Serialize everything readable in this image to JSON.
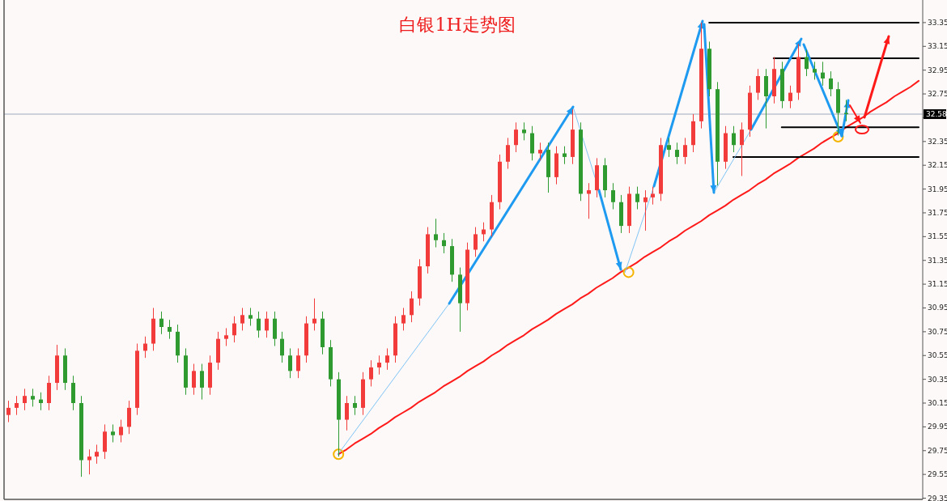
{
  "chart_data": {
    "type": "candlestick",
    "title": "白银1H走势图",
    "categories": [
      null,
      null,
      null,
      null,
      null,
      null,
      null,
      null,
      null,
      null,
      null,
      null,
      null,
      null,
      null,
      null,
      null,
      null,
      null,
      null,
      null,
      null,
      null,
      null,
      null,
      null,
      null,
      null,
      null,
      null,
      null,
      null,
      null,
      null,
      null,
      null,
      null,
      null,
      null,
      null,
      null,
      null,
      null,
      null,
      null,
      null,
      null,
      null,
      null,
      null,
      null,
      null,
      null,
      null,
      null,
      null,
      null,
      null,
      null,
      null,
      null,
      null,
      null,
      null,
      null,
      null,
      null,
      null,
      null,
      null,
      null,
      null,
      null,
      null,
      null,
      null,
      null,
      null,
      null,
      null,
      null,
      null,
      null,
      null,
      null,
      null,
      null,
      null,
      null,
      null,
      null,
      null,
      null,
      null,
      null,
      null,
      null,
      null,
      null,
      null,
      null,
      null,
      null,
      null,
      null,
      null,
      null,
      null,
      null,
      null,
      null,
      null,
      null,
      null
    ],
    "ohlc": [
      [
        30.05,
        30.17,
        29.99,
        30.11
      ],
      [
        30.11,
        30.21,
        30.05,
        30.15
      ],
      [
        30.15,
        30.27,
        30.09,
        30.21
      ],
      [
        30.21,
        30.27,
        30.12,
        30.18
      ],
      [
        30.18,
        30.24,
        30.09,
        30.15
      ],
      [
        30.15,
        30.38,
        30.09,
        30.32
      ],
      [
        30.32,
        30.64,
        30.26,
        30.55
      ],
      [
        30.55,
        30.61,
        30.26,
        30.32
      ],
      [
        30.32,
        30.38,
        30.09,
        30.15
      ],
      [
        30.15,
        30.21,
        29.53,
        29.67
      ],
      [
        29.67,
        29.76,
        29.55,
        29.7
      ],
      [
        29.7,
        29.8,
        29.64,
        29.74
      ],
      [
        29.74,
        29.97,
        29.68,
        29.91
      ],
      [
        29.91,
        29.97,
        29.82,
        29.88
      ],
      [
        29.88,
        30.01,
        29.82,
        29.95
      ],
      [
        29.95,
        30.17,
        29.89,
        30.11
      ],
      [
        30.11,
        30.65,
        30.05,
        30.59
      ],
      [
        30.59,
        30.71,
        30.53,
        30.65
      ],
      [
        30.65,
        30.95,
        30.59,
        30.86
      ],
      [
        30.86,
        30.92,
        30.73,
        30.79
      ],
      [
        30.79,
        30.85,
        30.69,
        30.75
      ],
      [
        30.75,
        30.81,
        30.49,
        30.55
      ],
      [
        30.55,
        30.61,
        30.22,
        30.28
      ],
      [
        30.28,
        30.48,
        30.22,
        30.42
      ],
      [
        30.42,
        30.48,
        30.18,
        30.28
      ],
      [
        30.28,
        30.55,
        30.22,
        30.49
      ],
      [
        30.49,
        30.75,
        30.43,
        30.69
      ],
      [
        30.69,
        30.78,
        30.63,
        30.72
      ],
      [
        30.72,
        30.88,
        30.66,
        30.82
      ],
      [
        30.82,
        30.95,
        30.76,
        30.89
      ],
      [
        30.89,
        30.95,
        30.8,
        30.86
      ],
      [
        30.86,
        30.92,
        30.7,
        30.76
      ],
      [
        30.76,
        30.92,
        30.7,
        30.86
      ],
      [
        30.86,
        30.92,
        30.63,
        30.69
      ],
      [
        30.69,
        30.75,
        30.49,
        30.55
      ],
      [
        30.55,
        30.61,
        30.36,
        30.42
      ],
      [
        30.42,
        30.61,
        30.36,
        30.55
      ],
      [
        30.55,
        30.88,
        30.49,
        30.82
      ],
      [
        30.82,
        31.03,
        30.76,
        30.86
      ],
      [
        30.86,
        30.92,
        30.56,
        30.62
      ],
      [
        30.62,
        30.68,
        30.29,
        30.35
      ],
      [
        30.35,
        30.41,
        29.7,
        30.01
      ],
      [
        30.01,
        30.21,
        29.92,
        30.15
      ],
      [
        30.15,
        30.21,
        30.05,
        30.11
      ],
      [
        30.11,
        30.41,
        30.05,
        30.35
      ],
      [
        30.35,
        30.51,
        30.29,
        30.45
      ],
      [
        30.45,
        30.55,
        30.39,
        30.49
      ],
      [
        30.49,
        30.61,
        30.43,
        30.55
      ],
      [
        30.55,
        30.88,
        30.49,
        30.82
      ],
      [
        30.82,
        30.95,
        30.76,
        30.89
      ],
      [
        30.89,
        31.09,
        30.83,
        31.03
      ],
      [
        31.03,
        31.36,
        30.97,
        31.3
      ],
      [
        31.3,
        31.63,
        31.24,
        31.57
      ],
      [
        31.57,
        31.7,
        31.46,
        31.52
      ],
      [
        31.52,
        31.58,
        31.41,
        31.47
      ],
      [
        31.47,
        31.53,
        31.17,
        31.23
      ],
      [
        31.23,
        31.29,
        30.75,
        30.99
      ],
      [
        30.99,
        31.5,
        30.93,
        31.44
      ],
      [
        31.44,
        31.63,
        31.38,
        31.57
      ],
      [
        31.57,
        31.67,
        31.51,
        31.61
      ],
      [
        31.61,
        31.9,
        31.55,
        31.84
      ],
      [
        31.84,
        32.24,
        31.78,
        32.18
      ],
      [
        32.18,
        32.38,
        32.12,
        32.32
      ],
      [
        32.32,
        32.51,
        32.26,
        32.45
      ],
      [
        32.45,
        32.51,
        32.36,
        32.42
      ],
      [
        32.42,
        32.48,
        32.19,
        32.25
      ],
      [
        32.25,
        32.34,
        32.19,
        32.28
      ],
      [
        32.28,
        32.34,
        31.92,
        32.05
      ],
      [
        32.05,
        32.31,
        31.99,
        32.25
      ],
      [
        32.25,
        32.31,
        32.16,
        32.22
      ],
      [
        32.22,
        32.62,
        32.16,
        32.45
      ],
      [
        32.45,
        32.51,
        31.85,
        31.91
      ],
      [
        31.91,
        32.0,
        31.7,
        31.94
      ],
      [
        31.94,
        32.21,
        31.88,
        32.15
      ],
      [
        32.15,
        32.21,
        31.88,
        31.94
      ],
      [
        31.94,
        32.0,
        31.78,
        31.84
      ],
      [
        31.84,
        31.9,
        31.58,
        31.64
      ],
      [
        31.64,
        31.97,
        31.58,
        31.91
      ],
      [
        31.91,
        31.97,
        31.78,
        31.84
      ],
      [
        31.84,
        31.94,
        31.6,
        31.88
      ],
      [
        31.88,
        31.97,
        31.82,
        31.91
      ],
      [
        31.91,
        32.38,
        31.85,
        32.32
      ],
      [
        32.32,
        32.38,
        32.22,
        32.28
      ],
      [
        32.28,
        32.34,
        32.16,
        32.22
      ],
      [
        32.22,
        32.38,
        32.16,
        32.32
      ],
      [
        32.32,
        32.58,
        32.26,
        32.52
      ],
      [
        32.52,
        33.35,
        32.46,
        33.13
      ],
      [
        33.13,
        33.19,
        32.73,
        32.79
      ],
      [
        32.79,
        32.85,
        31.98,
        32.18
      ],
      [
        32.18,
        32.48,
        32.12,
        32.42
      ],
      [
        32.42,
        32.48,
        32.26,
        32.32
      ],
      [
        32.32,
        32.51,
        32.06,
        32.45
      ],
      [
        32.45,
        32.82,
        32.39,
        32.76
      ],
      [
        32.76,
        32.96,
        32.7,
        32.9
      ],
      [
        32.9,
        32.96,
        32.46,
        32.73
      ],
      [
        32.73,
        33.06,
        32.67,
        32.96
      ],
      [
        32.96,
        33.02,
        32.63,
        32.69
      ],
      [
        32.69,
        32.82,
        32.63,
        32.76
      ],
      [
        32.76,
        33.17,
        32.7,
        33.06
      ],
      [
        33.06,
        33.12,
        32.9,
        32.96
      ],
      [
        32.96,
        33.02,
        32.87,
        32.93
      ],
      [
        32.93,
        33.02,
        32.82,
        32.88
      ],
      [
        32.88,
        32.94,
        32.73,
        32.79
      ],
      [
        32.79,
        32.85,
        32.4,
        32.59
      ],
      [
        32.59,
        32.7,
        32.52,
        32.58
      ],
      null,
      null,
      null,
      null,
      null,
      null,
      null,
      null,
      null
    ],
    "colors": [
      "#f23b3b",
      "#f23b3b",
      "#f23b3b",
      "#2f9a2f",
      "#2f9a2f",
      "#f23b3b",
      "#f23b3b",
      "#2f9a2f",
      "#2f9a2f",
      "#2f9a2f",
      "#f23b3b",
      "#f23b3b",
      "#f23b3b",
      "#2f9a2f",
      "#f23b3b",
      "#f23b3b",
      "#f23b3b",
      "#f23b3b",
      "#f23b3b",
      "#2f9a2f",
      "#2f9a2f",
      "#2f9a2f",
      "#2f9a2f",
      "#f23b3b",
      "#2f9a2f",
      "#f23b3b",
      "#f23b3b",
      "#f23b3b",
      "#f23b3b",
      "#f23b3b",
      "#2f9a2f",
      "#2f9a2f",
      "#f23b3b",
      "#2f9a2f",
      "#2f9a2f",
      "#2f9a2f",
      "#f23b3b",
      "#f23b3b",
      "#f23b3b",
      "#2f9a2f",
      "#2f9a2f",
      "#2f9a2f",
      "#f23b3b",
      "#2f9a2f",
      "#f23b3b",
      "#f23b3b",
      "#f23b3b",
      "#f23b3b",
      "#f23b3b",
      "#f23b3b",
      "#f23b3b",
      "#f23b3b",
      "#f23b3b",
      "#2f9a2f",
      "#2f9a2f",
      "#2f9a2f",
      "#2f9a2f",
      "#f23b3b",
      "#f23b3b",
      "#f23b3b",
      "#f23b3b",
      "#f23b3b",
      "#f23b3b",
      "#f23b3b",
      "#2f9a2f",
      "#2f9a2f",
      "#f23b3b",
      "#2f9a2f",
      "#f23b3b",
      "#2f9a2f",
      "#f23b3b",
      "#2f9a2f",
      "#f23b3b",
      "#f23b3b",
      "#2f9a2f",
      "#2f9a2f",
      "#2f9a2f",
      "#f23b3b",
      "#2f9a2f",
      "#f23b3b",
      "#f23b3b",
      "#f23b3b",
      "#2f9a2f",
      "#2f9a2f",
      "#f23b3b",
      "#f23b3b",
      "#f23b3b",
      "#2f9a2f",
      "#2f9a2f",
      "#f23b3b",
      "#2f9a2f",
      "#f23b3b",
      "#f23b3b",
      "#f23b3b",
      "#2f9a2f",
      "#f23b3b",
      "#2f9a2f",
      "#f23b3b",
      "#f23b3b",
      "#2f9a2f",
      "#2f9a2f",
      "#2f9a2f",
      "#2f9a2f",
      "#2f9a2f",
      "#2f9a2f",
      null,
      null,
      null,
      null,
      null,
      null,
      null,
      null,
      null
    ],
    "series": [
      {
        "type": "line",
        "color": "#ff1a1a",
        "values": [
          null,
          null,
          null,
          null,
          null,
          null,
          null,
          null,
          null,
          null,
          null,
          null,
          null,
          null,
          null,
          null,
          null,
          null,
          null,
          null,
          null,
          null,
          null,
          null,
          null,
          null,
          null,
          null,
          null,
          null,
          null,
          null,
          null,
          null,
          null,
          null,
          null,
          null,
          null,
          null,
          null,
          29.72,
          29.76,
          29.81,
          29.85,
          29.89,
          29.94,
          29.98,
          30.03,
          30.07,
          30.11,
          30.16,
          30.2,
          30.24,
          30.29,
          30.33,
          30.37,
          30.42,
          30.46,
          30.5,
          30.55,
          30.59,
          30.64,
          30.68,
          30.72,
          30.77,
          30.81,
          30.85,
          30.9,
          30.94,
          30.98,
          31.03,
          31.07,
          31.12,
          31.16,
          31.2,
          31.25,
          31.29,
          31.33,
          31.38,
          31.42,
          31.46,
          31.51,
          31.55,
          31.6,
          31.64,
          31.68,
          31.73,
          31.77,
          31.81,
          31.86,
          31.9,
          31.94,
          31.99,
          32.03,
          32.08,
          32.12,
          32.16,
          32.21,
          32.25,
          32.29,
          32.34,
          32.38,
          32.42,
          32.47,
          32.51,
          32.55,
          32.6,
          32.64,
          32.68,
          32.73,
          32.77,
          32.81,
          32.86
        ]
      },
      {
        "type": "line",
        "color": "#000000",
        "values": [
          null,
          null,
          null,
          null,
          null,
          null,
          null,
          null,
          null,
          null,
          null,
          null,
          null,
          null,
          null,
          null,
          null,
          null,
          null,
          null,
          null,
          null,
          null,
          null,
          null,
          null,
          null,
          null,
          null,
          null,
          null,
          null,
          null,
          null,
          null,
          null,
          null,
          null,
          null,
          null,
          null,
          null,
          null,
          null,
          null,
          null,
          null,
          null,
          null,
          null,
          null,
          null,
          null,
          null,
          null,
          null,
          null,
          null,
          null,
          null,
          null,
          null,
          null,
          null,
          null,
          null,
          null,
          null,
          null,
          null,
          null,
          null,
          null,
          null,
          null,
          null,
          null,
          null,
          null,
          null,
          null,
          null,
          null,
          null,
          null,
          null,
          null,
          33.35,
          33.35,
          33.35,
          33.35,
          33.35,
          33.35,
          33.35,
          33.35,
          33.35,
          33.35,
          33.35,
          33.35,
          33.35,
          33.35,
          33.35,
          33.35,
          33.35,
          33.35,
          33.35,
          33.35,
          33.35,
          33.35,
          33.35,
          33.35,
          33.35,
          33.35,
          33.35
        ]
      },
      {
        "type": "line",
        "color": "#000000",
        "values": [
          null,
          null,
          null,
          null,
          null,
          null,
          null,
          null,
          null,
          null,
          null,
          null,
          null,
          null,
          null,
          null,
          null,
          null,
          null,
          null,
          null,
          null,
          null,
          null,
          null,
          null,
          null,
          null,
          null,
          null,
          null,
          null,
          null,
          null,
          null,
          null,
          null,
          null,
          null,
          null,
          null,
          null,
          null,
          null,
          null,
          null,
          null,
          null,
          null,
          null,
          null,
          null,
          null,
          null,
          null,
          null,
          null,
          null,
          null,
          null,
          null,
          null,
          null,
          null,
          null,
          null,
          null,
          null,
          null,
          null,
          null,
          null,
          null,
          null,
          null,
          null,
          null,
          null,
          null,
          null,
          null,
          null,
          null,
          null,
          null,
          null,
          null,
          null,
          null,
          null,
          null,
          null,
          null,
          null,
          null,
          33.05,
          33.05,
          33.05,
          33.05,
          33.05,
          33.05,
          33.05,
          33.05,
          33.05,
          33.05,
          33.05,
          33.05,
          33.05,
          33.05,
          33.05,
          33.05,
          33.05,
          33.05,
          33.05
        ]
      },
      {
        "type": "line",
        "color": "#000000",
        "values": [
          null,
          null,
          null,
          null,
          null,
          null,
          null,
          null,
          null,
          null,
          null,
          null,
          null,
          null,
          null,
          null,
          null,
          null,
          null,
          null,
          null,
          null,
          null,
          null,
          null,
          null,
          null,
          null,
          null,
          null,
          null,
          null,
          null,
          null,
          null,
          null,
          null,
          null,
          null,
          null,
          null,
          null,
          null,
          null,
          null,
          null,
          null,
          null,
          null,
          null,
          null,
          null,
          null,
          null,
          null,
          null,
          null,
          null,
          null,
          null,
          null,
          null,
          null,
          null,
          null,
          null,
          null,
          null,
          null,
          null,
          null,
          null,
          null,
          null,
          null,
          null,
          null,
          null,
          null,
          null,
          null,
          null,
          null,
          null,
          null,
          null,
          null,
          null,
          null,
          null,
          null,
          null,
          null,
          null,
          null,
          null,
          32.47,
          32.47,
          32.47,
          32.47,
          32.47,
          32.47,
          32.47,
          32.47,
          32.47,
          32.47,
          32.47,
          32.47,
          32.47,
          32.47,
          32.47,
          32.47,
          32.47,
          32.47
        ]
      },
      {
        "type": "line",
        "color": "#000000",
        "values": [
          null,
          null,
          null,
          null,
          null,
          null,
          null,
          null,
          null,
          null,
          null,
          null,
          null,
          null,
          null,
          null,
          null,
          null,
          null,
          null,
          null,
          null,
          null,
          null,
          null,
          null,
          null,
          null,
          null,
          null,
          null,
          null,
          null,
          null,
          null,
          null,
          null,
          null,
          null,
          null,
          null,
          null,
          null,
          null,
          null,
          null,
          null,
          null,
          null,
          null,
          null,
          null,
          null,
          null,
          null,
          null,
          null,
          null,
          null,
          null,
          null,
          null,
          null,
          null,
          null,
          null,
          null,
          null,
          null,
          null,
          null,
          null,
          null,
          null,
          null,
          null,
          null,
          null,
          null,
          null,
          null,
          null,
          null,
          null,
          null,
          null,
          null,
          null,
          null,
          null,
          32.22,
          32.22,
          32.22,
          32.22,
          32.22,
          32.22,
          32.22,
          32.22,
          32.22,
          32.22,
          32.22,
          32.22,
          32.22,
          32.22,
          32.22,
          32.22,
          32.22,
          32.22,
          32.22,
          32.22,
          32.22,
          32.22,
          32.22,
          32.22
        ]
      },
      {
        "type": "scatter",
        "color": "#f5b400",
        "marker": "circle",
        "values": [
          null,
          null,
          null,
          null,
          null,
          null,
          null,
          null,
          null,
          null,
          null,
          null,
          null,
          null,
          null,
          null,
          null,
          null,
          null,
          null,
          null,
          null,
          null,
          null,
          null,
          null,
          null,
          null,
          null,
          null,
          null,
          null,
          null,
          null,
          null,
          null,
          null,
          null,
          null,
          null,
          null,
          29.72,
          null,
          null,
          null,
          null,
          null,
          null,
          null,
          null,
          null,
          null,
          null,
          null,
          null,
          null,
          null,
          null,
          null,
          null,
          null,
          null,
          null,
          null,
          null,
          null,
          null,
          null,
          null,
          null,
          null,
          null,
          null,
          null,
          null,
          null,
          null,
          31.25,
          null,
          null,
          null,
          null,
          null,
          null,
          null,
          null,
          null,
          null,
          null,
          null,
          null,
          null,
          null,
          null,
          null,
          null,
          null,
          null,
          null,
          null,
          null,
          null,
          null,
          32.39,
          null,
          null,
          null,
          null,
          null,
          null,
          null,
          null,
          null,
          null
        ]
      }
    ],
    "ref_lines": [
      {
        "axis": "y",
        "value": 32.58,
        "label": "32.58",
        "color": "#a0a8bc"
      }
    ],
    "ylim": [
      29.34,
      33.54
    ],
    "yticks": [
      29.35,
      29.55,
      29.75,
      29.95,
      30.15,
      30.35,
      30.55,
      30.75,
      30.95,
      31.15,
      31.35,
      31.55,
      31.75,
      31.95,
      32.15,
      32.35,
      {
        "value": 32.55,
        "label": null
      },
      32.75,
      32.95,
      33.15,
      33.35
    ],
    "tick_labels": "y"
  }
}
